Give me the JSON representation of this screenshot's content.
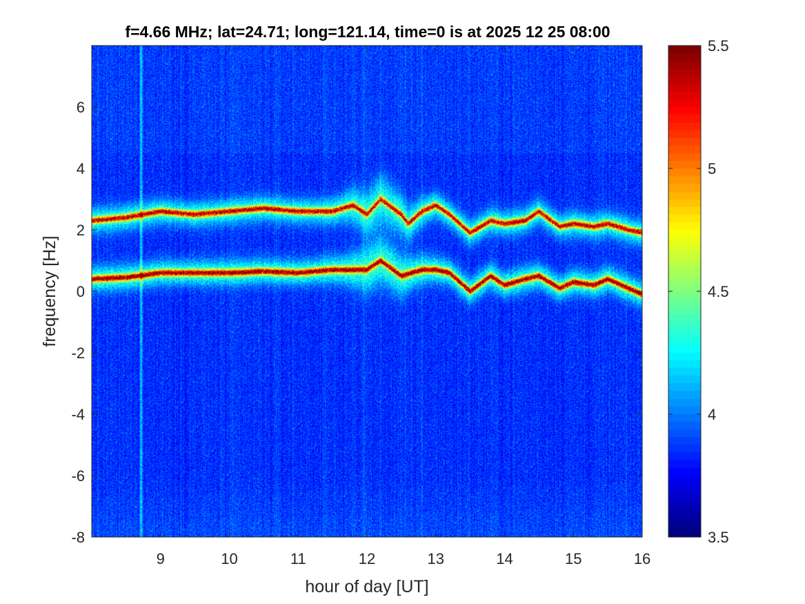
{
  "chart_data": {
    "type": "heatmap",
    "title": "f=4.66 MHz;  lat=24.71; long=121.14, time=0 is at 2025 12 25 08:00",
    "xlabel": "hour of day [UT]",
    "ylabel": "frequency [Hz]",
    "xlim": [
      8,
      16
    ],
    "ylim": [
      -8,
      8
    ],
    "xticks": [
      9,
      10,
      11,
      12,
      13,
      14,
      15,
      16
    ],
    "xtick_labels": [
      "9",
      "10",
      "11",
      "12",
      "13",
      "14",
      "15",
      "16"
    ],
    "yticks": [
      -8,
      -6,
      -4,
      -2,
      0,
      2,
      4,
      6
    ],
    "ytick_labels": [
      "-8",
      "-6",
      "-4",
      "-2",
      "0",
      "2",
      "4",
      "6"
    ],
    "colormap": "jet",
    "clim": [
      3.5,
      5.5
    ],
    "colorbar_ticks": [
      3.5,
      4,
      4.5,
      5,
      5.5
    ],
    "colorbar_tick_labels": [
      "3.5",
      "4",
      "4.5",
      "5",
      "5.5"
    ],
    "background_level": 3.85,
    "grid": false,
    "vertical_features": [
      {
        "x": 8.72,
        "level": 4.3
      },
      {
        "x": 11.95,
        "level": 3.95
      },
      {
        "x": 12.8,
        "level": 3.95
      }
    ],
    "traces": [
      {
        "name": "upper doppler trace",
        "x": [
          8.0,
          8.5,
          9.0,
          9.5,
          10.0,
          10.5,
          11.0,
          11.5,
          11.8,
          12.0,
          12.2,
          12.5,
          12.6,
          12.8,
          13.0,
          13.2,
          13.5,
          13.8,
          14.0,
          14.3,
          14.5,
          14.8,
          15.0,
          15.3,
          15.5,
          15.8,
          16.0
        ],
        "y": [
          2.3,
          2.4,
          2.6,
          2.5,
          2.6,
          2.7,
          2.6,
          2.6,
          2.8,
          2.5,
          3.0,
          2.5,
          2.2,
          2.6,
          2.8,
          2.5,
          1.9,
          2.3,
          2.2,
          2.3,
          2.6,
          2.1,
          2.2,
          2.1,
          2.2,
          2.0,
          1.9
        ],
        "level": 5.2
      },
      {
        "name": "lower doppler trace",
        "x": [
          8.0,
          8.5,
          9.0,
          9.5,
          10.0,
          10.5,
          11.0,
          11.5,
          12.0,
          12.2,
          12.5,
          12.8,
          13.0,
          13.2,
          13.5,
          13.8,
          14.0,
          14.3,
          14.5,
          14.8,
          15.0,
          15.3,
          15.5,
          15.8,
          16.0
        ],
        "y": [
          0.4,
          0.45,
          0.6,
          0.6,
          0.6,
          0.65,
          0.6,
          0.7,
          0.7,
          1.0,
          0.5,
          0.7,
          0.7,
          0.6,
          0.0,
          0.5,
          0.2,
          0.4,
          0.5,
          0.1,
          0.3,
          0.2,
          0.4,
          0.1,
          -0.1
        ],
        "level": 5.3
      }
    ]
  }
}
